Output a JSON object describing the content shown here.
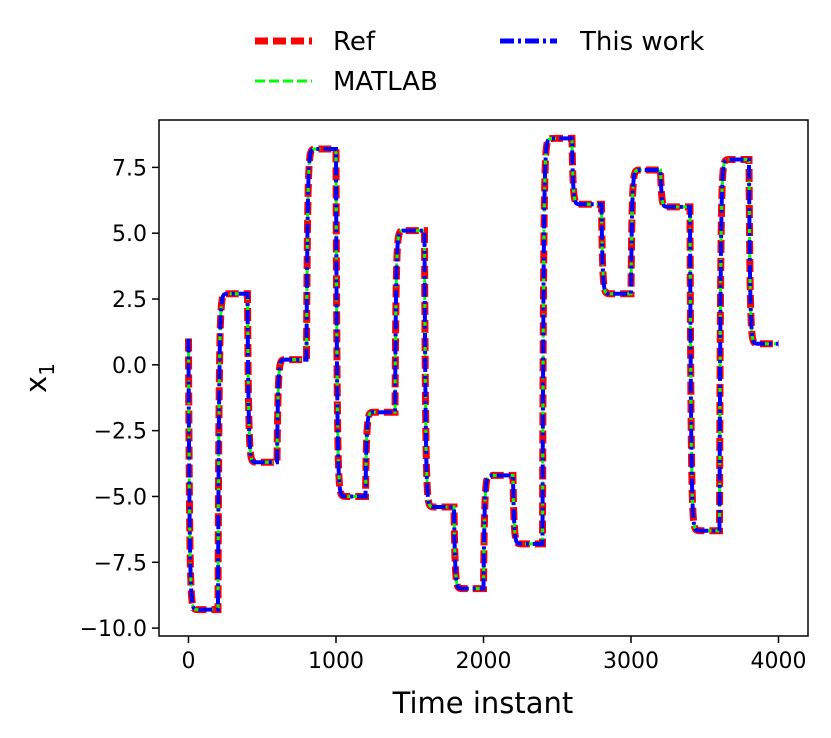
{
  "chart_data": {
    "type": "line",
    "xlabel": "Time instant",
    "ylabel": "x",
    "ylabel_subscript": "1",
    "xlim": [
      -200,
      4200
    ],
    "ylim": [
      -10.3,
      9.3
    ],
    "x_ticks": [
      0,
      1000,
      2000,
      3000,
      4000
    ],
    "x_tick_labels": [
      "0",
      "1000",
      "2000",
      "3000",
      "4000"
    ],
    "y_ticks": [
      7.5,
      5.0,
      2.5,
      0.0,
      -2.5,
      -5.0,
      -7.5,
      -10.0
    ],
    "y_tick_labels": [
      "7.5",
      "5.0",
      "2.5",
      "0.0",
      "−2.5",
      "−5.0",
      "−7.5",
      "−10.0"
    ],
    "legend_position": "above the plot, two columns",
    "x_start": 0,
    "x_end": 4000,
    "initial_value": 1.0,
    "steps": [
      {
        "t": 0,
        "level": -9.3
      },
      {
        "t": 200,
        "level": 2.7
      },
      {
        "t": 400,
        "level": -3.7
      },
      {
        "t": 600,
        "level": 0.2
      },
      {
        "t": 800,
        "level": 8.2
      },
      {
        "t": 1000,
        "level": -5.0
      },
      {
        "t": 1200,
        "level": -1.8
      },
      {
        "t": 1400,
        "level": 5.1
      },
      {
        "t": 1600,
        "level": -5.4
      },
      {
        "t": 1800,
        "level": -8.5
      },
      {
        "t": 2000,
        "level": -4.2
      },
      {
        "t": 2200,
        "level": -6.8
      },
      {
        "t": 2400,
        "level": 8.6
      },
      {
        "t": 2600,
        "level": 6.1
      },
      {
        "t": 2800,
        "level": 2.7
      },
      {
        "t": 3000,
        "level": 7.4
      },
      {
        "t": 3200,
        "level": 6.0
      },
      {
        "t": 3400,
        "level": -6.3
      },
      {
        "t": 3600,
        "level": 7.8
      },
      {
        "t": 3800,
        "level": 0.8
      }
    ],
    "series": [
      {
        "name": "Ref",
        "color": "#ff0000",
        "style": "dashed-thick"
      },
      {
        "name": "MATLAB",
        "color": "#00ff00",
        "style": "dashed"
      },
      {
        "name": "This work",
        "color": "#0000ff",
        "style": "dash-dot"
      }
    ]
  }
}
